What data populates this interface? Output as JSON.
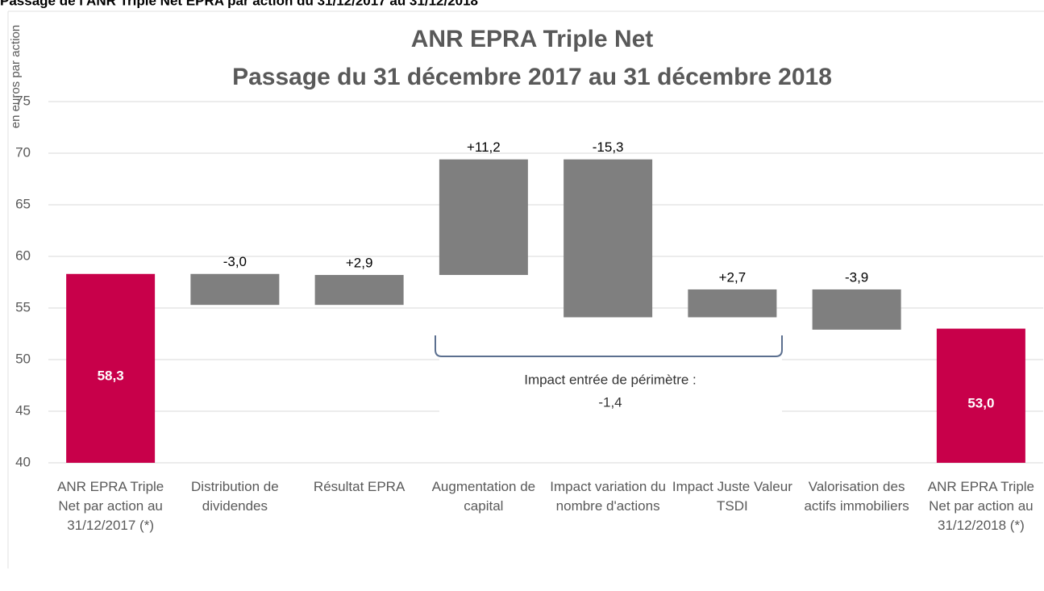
{
  "chart_data": {
    "type": "waterfall",
    "heading": "Passage de l'ANR Triple Net EPRA par action du 31/12/2017 au 31/12/2018",
    "title": "ANR EPRA Triple Net",
    "subtitle": "Passage du 31 décembre 2017 au 31 décembre 2018",
    "y_label": "en euros par action",
    "categories": [
      "ANR EPRA Triple Net par action au 31/12/2017 (*)",
      "Distribution de dividendes",
      "Résultat EPRA",
      "Augmentation de capital",
      "Impact variation du nombre d'actions",
      "Impact Juste Valeur TSDI",
      "Valorisation des actifs immobiliers",
      "ANR EPRA Triple Net par action au 31/12/2018 (*)"
    ],
    "measure": [
      "absolute",
      "relative",
      "relative",
      "relative",
      "relative",
      "relative",
      "relative",
      "absolute"
    ],
    "values": [
      58.3,
      -3.0,
      2.9,
      11.2,
      -15.3,
      2.7,
      -3.9,
      53.0
    ],
    "value_labels": [
      "58,3",
      "-3,0",
      "+2,9",
      "+11,2",
      "-15,3",
      "+2,7",
      "-3,9",
      "53,0"
    ],
    "total_color": "#c8004a",
    "delta_color": "#7f7f7f",
    "annotations": [
      "Impact entrée de périmètre :",
      "-1,4"
    ],
    "ylim": [
      40,
      75
    ],
    "yticks": [
      40,
      45,
      50,
      55,
      60,
      65,
      70,
      75
    ],
    "grid": true
  }
}
